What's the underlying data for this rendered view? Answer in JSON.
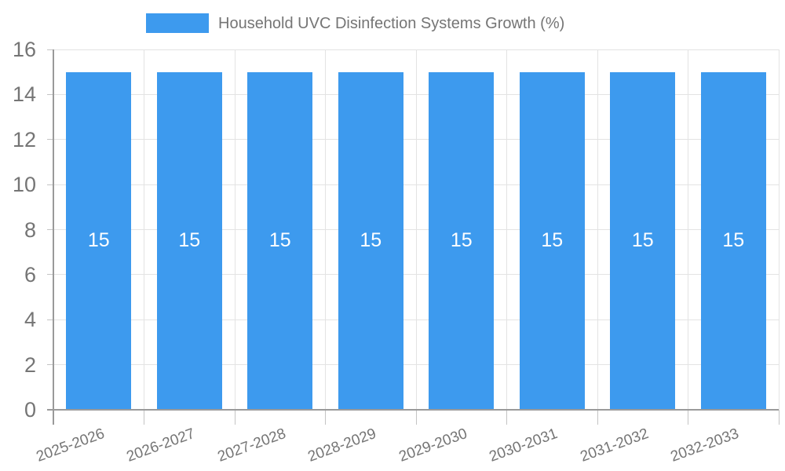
{
  "legend": {
    "label": "Household UVC Disinfection Systems Growth (%)"
  },
  "chart_data": {
    "type": "bar",
    "title": "Household UVC Disinfection Systems Growth (%)",
    "categories": [
      "2025-2026",
      "2026-2027",
      "2027-2028",
      "2028-2029",
      "2029-2030",
      "2030-2031",
      "2031-2032",
      "2032-2033"
    ],
    "series": [
      {
        "name": "Household UVC Disinfection Systems Growth (%)",
        "values": [
          15,
          15,
          15,
          15,
          15,
          15,
          15,
          15
        ]
      }
    ],
    "values": [
      15,
      15,
      15,
      15,
      15,
      15,
      15,
      15
    ],
    "bar_value_labels": [
      "15",
      "15",
      "15",
      "15",
      "15",
      "15",
      "15",
      "15"
    ],
    "xlabel": "",
    "ylabel": "",
    "ylim": [
      0,
      16
    ],
    "yticks": [
      0,
      2,
      4,
      6,
      8,
      10,
      12,
      14,
      16
    ],
    "grid": true,
    "legend_position": "top",
    "colors": {
      "bar": "#3D9AEE",
      "bar_label_text": "#FFFFFF",
      "axis_line": "#9A9A9A",
      "gridline": "#E3E3E3",
      "tick": "#C4C4C4",
      "text": "#757575"
    }
  }
}
